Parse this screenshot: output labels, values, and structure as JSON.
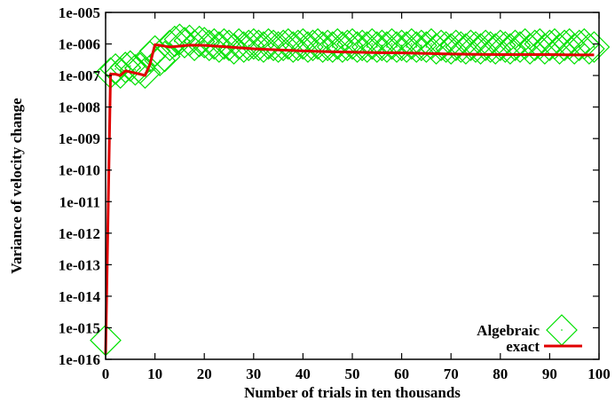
{
  "chart_data": {
    "type": "line",
    "title": "",
    "xlabel": "Number of trials in ten thousands",
    "ylabel": "Variance of velocity change",
    "xlim": [
      0,
      100
    ],
    "ylim": [
      1e-16,
      1e-05
    ],
    "log_y": true,
    "grid": false,
    "legend_position": "bottom-right",
    "x_ticks": [
      "0",
      "10",
      "20",
      "30",
      "40",
      "50",
      "60",
      "70",
      "80",
      "90",
      "100"
    ],
    "x_tick_values": [
      0,
      10,
      20,
      30,
      40,
      50,
      60,
      70,
      80,
      90,
      100
    ],
    "y_ticks": [
      "1e-016",
      "1e-015",
      "1e-014",
      "1e-013",
      "1e-012",
      "1e-011",
      "1e-010",
      "1e-009",
      "1e-008",
      "1e-007",
      "1e-006",
      "1e-005"
    ],
    "y_tick_values": [
      1e-16,
      1e-15,
      1e-14,
      1e-13,
      1e-12,
      1e-11,
      1e-10,
      1e-09,
      1e-08,
      1e-07,
      1e-06,
      1e-05
    ],
    "series": [
      {
        "name": "Algebraic",
        "style": "points",
        "marker": "diamond",
        "color": "#00e000",
        "x": [
          0,
          1,
          2,
          3,
          4,
          5,
          6,
          7,
          8,
          9,
          10,
          11,
          12,
          13,
          14,
          15,
          16,
          17,
          18,
          19,
          20,
          21,
          22,
          23,
          24,
          25,
          26,
          27,
          28,
          29,
          30,
          31,
          32,
          33,
          34,
          35,
          36,
          37,
          38,
          39,
          40,
          41,
          42,
          43,
          44,
          45,
          46,
          47,
          48,
          49,
          50,
          51,
          52,
          53,
          54,
          55,
          56,
          57,
          58,
          59,
          60,
          61,
          62,
          63,
          64,
          65,
          66,
          67,
          68,
          69,
          70,
          71,
          72,
          73,
          74,
          75,
          76,
          77,
          78,
          79,
          80,
          81,
          82,
          83,
          84,
          85,
          86,
          87,
          88,
          89,
          90,
          91,
          92,
          93,
          94,
          95,
          96,
          97,
          98,
          99
        ],
        "y": [
          4e-16,
          1.2e-07,
          1.6e-07,
          1.2e-07,
          1.8e-07,
          2e-07,
          1.5e-07,
          1.7e-07,
          1.2e-07,
          4e-07,
          6e-07,
          3e-07,
          4e-07,
          9e-07,
          1.2e-06,
          1.4e-06,
          1.1e-06,
          1.3e-06,
          9e-07,
          1.2e-06,
          1.1e-06,
          9e-07,
          1e-06,
          8e-07,
          1e-06,
          9e-07,
          7e-07,
          1e-06,
          8e-07,
          9e-07,
          1e-06,
          9e-07,
          8e-07,
          1e-06,
          9e-07,
          8e-07,
          9e-07,
          1e-06,
          8e-07,
          9e-07,
          1e-06,
          8e-07,
          9e-07,
          1e-06,
          8e-07,
          9e-07,
          8e-07,
          1e-06,
          8e-07,
          9e-07,
          1e-06,
          8e-07,
          9e-07,
          8e-07,
          1e-06,
          8e-07,
          9e-07,
          8e-07,
          1e-06,
          8e-07,
          9e-07,
          8e-07,
          1e-06,
          8e-07,
          9e-07,
          8e-07,
          1e-06,
          7e-07,
          9e-07,
          8e-07,
          7e-07,
          9e-07,
          8e-07,
          7e-07,
          9e-07,
          8e-07,
          7e-07,
          9e-07,
          8e-07,
          7e-07,
          9e-07,
          8e-07,
          7e-07,
          9e-07,
          8e-07,
          1e-06,
          7e-07,
          9e-07,
          1e-06,
          7e-07,
          9e-07,
          1e-06,
          7e-07,
          9e-07,
          1e-06,
          7e-07,
          9e-07,
          1e-06,
          7e-07,
          8e-07
        ]
      },
      {
        "name": "exact",
        "style": "line",
        "color": "#e00000",
        "x": [
          0,
          1,
          2,
          3,
          4,
          5,
          6,
          7,
          8,
          9,
          10,
          11,
          12,
          13,
          15,
          17,
          20,
          25,
          30,
          35,
          40,
          45,
          50,
          55,
          60,
          65,
          70,
          75,
          80,
          85,
          90,
          95,
          99
        ],
        "y": [
          1.5e-16,
          1.1e-07,
          1.1e-07,
          1e-07,
          1.4e-07,
          1.3e-07,
          1.2e-07,
          1.1e-07,
          1e-07,
          2.3e-07,
          9.5e-07,
          9e-07,
          8.5e-07,
          8e-07,
          8.5e-07,
          9.2e-07,
          9e-07,
          8e-07,
          7e-07,
          6.5e-07,
          6e-07,
          5.7e-07,
          5.5e-07,
          5.3e-07,
          5.2e-07,
          5e-07,
          4.8e-07,
          4.7e-07,
          4.6e-07,
          4.6e-07,
          4.6e-07,
          4.5e-07,
          4.5e-07
        ]
      }
    ]
  },
  "colors": {
    "algebraic": "#00e000",
    "exact": "#e00000",
    "axis": "#000000"
  }
}
